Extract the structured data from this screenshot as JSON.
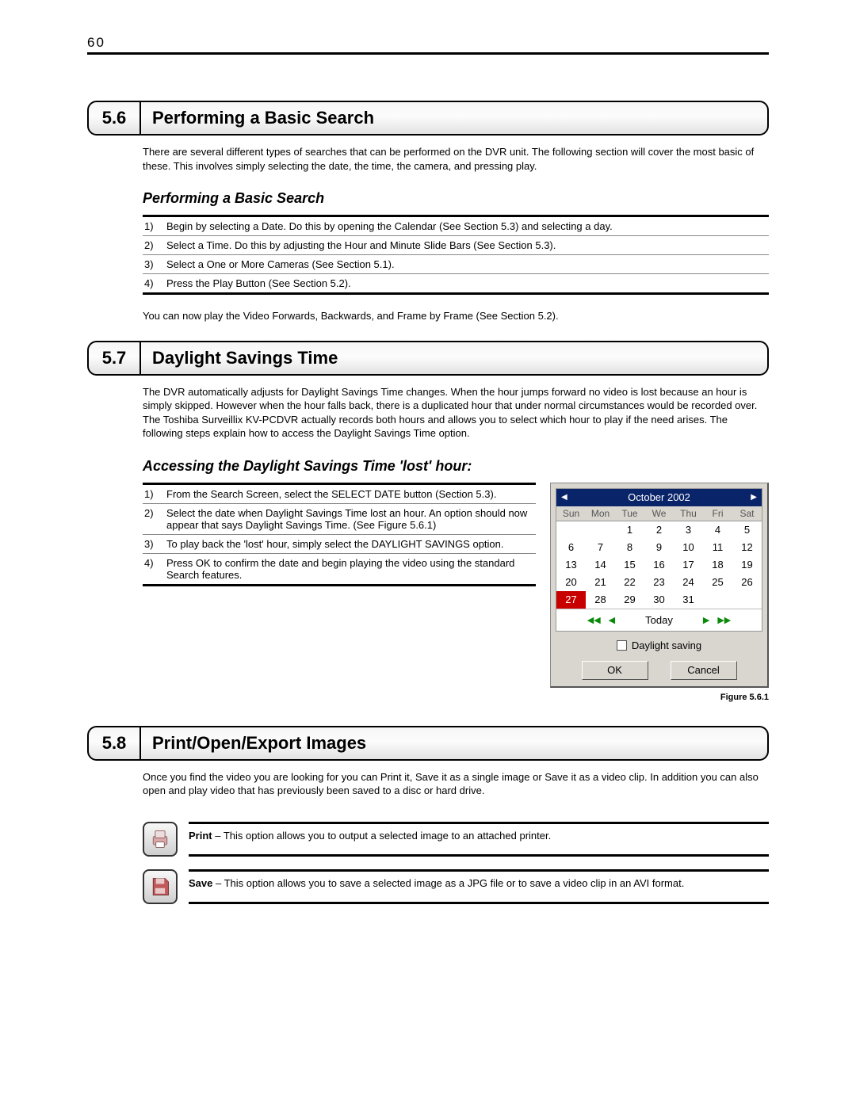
{
  "page_number": "60",
  "sections": [
    {
      "num": "5.6",
      "title": "Performing a Basic Search",
      "intro": "There are several different types of searches that can be performed on the DVR unit. The following section will cover the most basic of these. This involves simply selecting the date, the time, the camera, and pressing play.",
      "sub_heading": "Performing a Basic Search",
      "steps": [
        "Begin by selecting a Date. Do this by opening the Calendar (See Section 5.3) and selecting a day.",
        "Select a Time. Do this by adjusting the Hour and Minute Slide Bars (See Section 5.3).",
        "Select a One or More Cameras (See Section 5.1).",
        "Press the Play Button (See Section 5.2)."
      ],
      "after": "You can now play the Video Forwards, Backwards, and Frame by Frame (See Section 5.2)."
    },
    {
      "num": "5.7",
      "title": "Daylight Savings Time",
      "intro": "The DVR automatically adjusts for Daylight Savings Time changes. When the hour jumps forward no video is lost because an hour is simply skipped. However when the hour falls back, there is a duplicated hour that under normal circumstances would be recorded over. The Toshiba Surveillix KV-PCDVR actually records both hours and allows you to select which hour to play if the need arises. The following steps explain how to access the Daylight Savings Time option.",
      "sub_heading": "Accessing the Daylight Savings Time 'lost' hour:",
      "steps": [
        "From the Search Screen, select the SELECT DATE button (Section 5.3).",
        "Select the date when Daylight Savings Time lost an hour. An option should now appear that says Daylight Savings Time. (See Figure 5.6.1)",
        "To play back the 'lost' hour, simply select the DAYLIGHT SAVINGS option.",
        "Press OK to confirm the date and begin playing the video using the standard Search features."
      ],
      "figure_label": "Figure 5.6.1"
    },
    {
      "num": "5.8",
      "title": "Print/Open/Export Images",
      "intro": "Once you find the video you are looking for you can Print it, Save it as a single image or Save it as a video clip. In addition you can also open and play video that has previously been saved to a disc or hard drive.",
      "icons": [
        {
          "name": "Print",
          "desc": " – This option allows you to output a selected image to an attached printer."
        },
        {
          "name": "Save",
          "desc": " – This option allows you to save a selected image as a JPG file or to save a video clip in an AVI format."
        }
      ]
    }
  ],
  "calendar": {
    "month_label": "October 2002",
    "dow": [
      "Sun",
      "Mon",
      "Tue",
      "We",
      "Thu",
      "Fri",
      "Sat"
    ],
    "weeks": [
      [
        "",
        "",
        "1",
        "2",
        "3",
        "4",
        "5"
      ],
      [
        "6",
        "7",
        "8",
        "9",
        "10",
        "11",
        "12"
      ],
      [
        "13",
        "14",
        "15",
        "16",
        "17",
        "18",
        "19"
      ],
      [
        "20",
        "21",
        "22",
        "23",
        "24",
        "25",
        "26"
      ],
      [
        "27",
        "28",
        "29",
        "30",
        "31",
        "",
        ""
      ]
    ],
    "selected": "27",
    "today_label": "Today",
    "daylight_label": "Daylight saving",
    "ok_label": "OK",
    "cancel_label": "Cancel",
    "colors": {
      "header_bg": "#0a246a",
      "selected_bg": "#c80000",
      "panel_bg": "#d9d6cf"
    }
  }
}
